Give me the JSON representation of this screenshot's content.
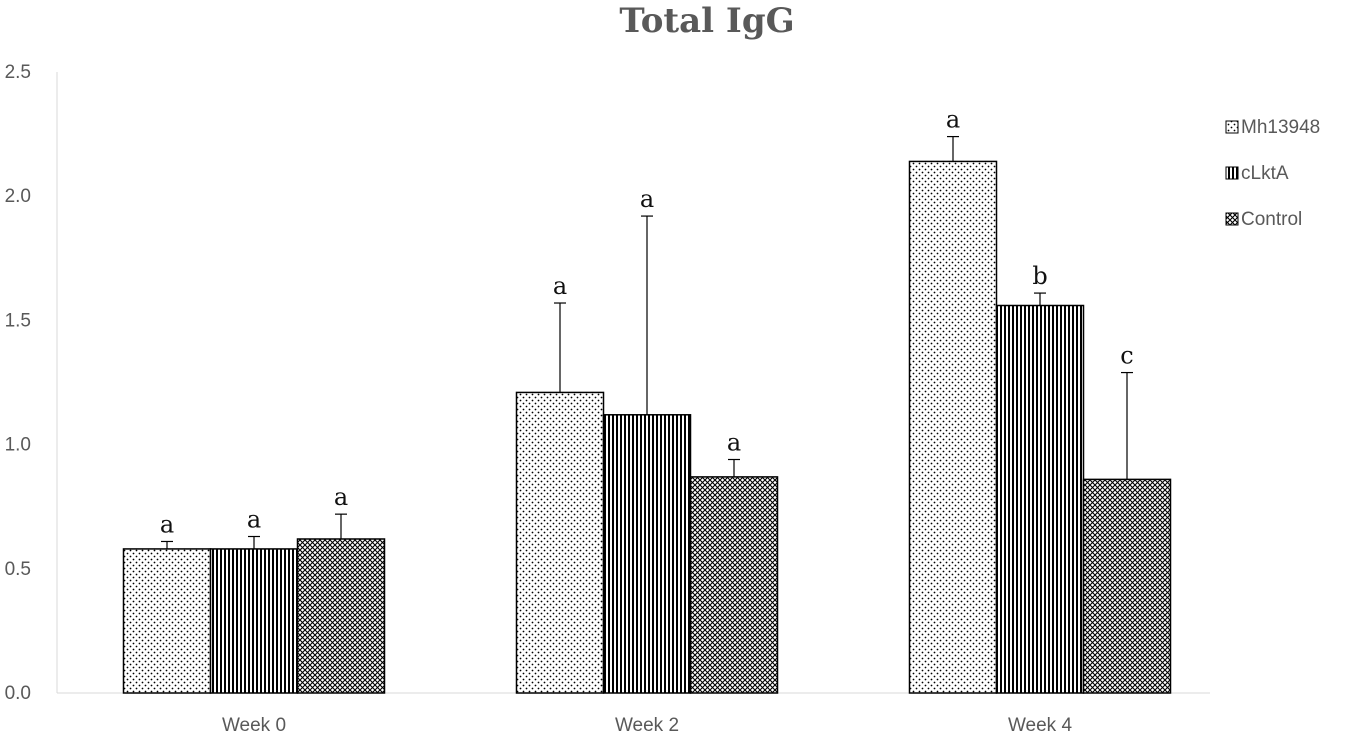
{
  "chart_data": {
    "type": "bar",
    "title": "Total IgG",
    "xlabel": "",
    "ylabel": "",
    "categories": [
      "Week 0",
      "Week 2",
      "Week 4"
    ],
    "ylim": [
      0,
      2.5
    ],
    "yticks": [
      "0.0",
      "0.5",
      "1.0",
      "1.5",
      "2.0",
      "2.5"
    ],
    "grid": false,
    "legend_position": "right",
    "series": [
      {
        "name": "Mh13948",
        "pattern": "dots",
        "values": [
          0.58,
          1.21,
          2.14
        ],
        "error_upper": [
          0.61,
          1.57,
          2.24
        ],
        "significance": [
          "a",
          "a",
          "a"
        ]
      },
      {
        "name": "cLktA",
        "pattern": "vertical-stripes",
        "values": [
          0.58,
          1.12,
          1.56
        ],
        "error_upper": [
          0.63,
          1.92,
          1.61
        ],
        "significance": [
          "a",
          "a",
          "b"
        ]
      },
      {
        "name": "Control",
        "pattern": "crosshatch",
        "values": [
          0.62,
          0.87,
          0.86
        ],
        "error_upper": [
          0.72,
          0.94,
          1.29
        ],
        "significance": [
          "a",
          "a",
          "c"
        ]
      }
    ]
  },
  "colors": {
    "text": "#595959",
    "bar_stroke": "#000000",
    "axis": "#d9d9d9",
    "bar_fill": "#ffffff"
  }
}
